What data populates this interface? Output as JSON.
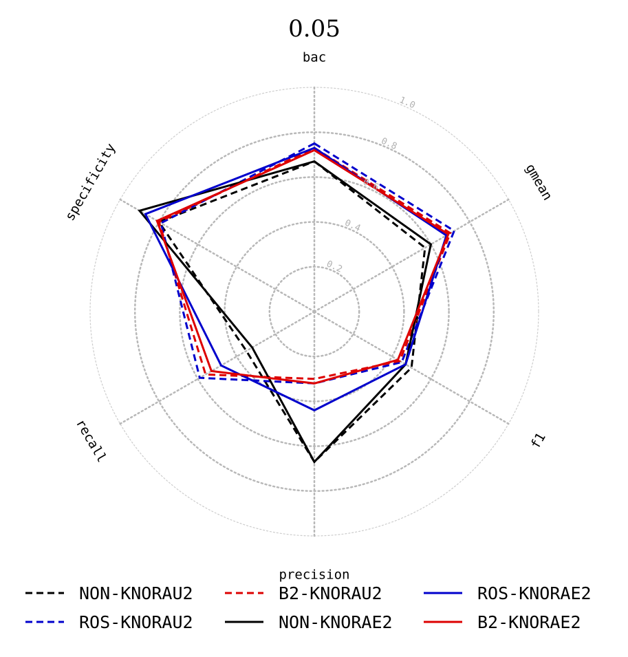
{
  "chart_data": {
    "type": "radar",
    "title": "0.05",
    "axes": [
      "bac",
      "gmean",
      "f1",
      "precision",
      "recall",
      "specificity"
    ],
    "rlim": [
      0,
      1.0
    ],
    "ticks": [
      0.2,
      0.4,
      0.6,
      0.8,
      1.0
    ],
    "tick_labels": [
      "0.2",
      "0.4",
      "0.6",
      "0.8",
      "1.0"
    ],
    "grid": true,
    "legend_placement": "bottom",
    "series": [
      {
        "name": "NON-KNORAU2",
        "color": "#000000",
        "dash": "dashed",
        "values": [
          0.67,
          0.57,
          0.5,
          0.67,
          0.35,
          0.8
        ]
      },
      {
        "name": "ROS-KNORAU2",
        "color": "#0000cc",
        "dash": "dashed",
        "values": [
          0.75,
          0.72,
          0.45,
          0.32,
          0.59,
          0.79
        ]
      },
      {
        "name": "B2-KNORAU2",
        "color": "#dd0000",
        "dash": "dashed",
        "values": [
          0.73,
          0.7,
          0.44,
          0.3,
          0.56,
          0.8
        ]
      },
      {
        "name": "NON-KNORAE2",
        "color": "#000000",
        "dash": "solid",
        "values": [
          0.67,
          0.6,
          0.47,
          0.67,
          0.32,
          0.9
        ]
      },
      {
        "name": "ROS-KNORAE2",
        "color": "#0000cc",
        "dash": "solid",
        "values": [
          0.73,
          0.68,
          0.47,
          0.44,
          0.48,
          0.87
        ]
      },
      {
        "name": "B2-KNORAE2",
        "color": "#dd0000",
        "dash": "solid",
        "values": [
          0.72,
          0.69,
          0.43,
          0.32,
          0.53,
          0.81
        ]
      }
    ]
  }
}
